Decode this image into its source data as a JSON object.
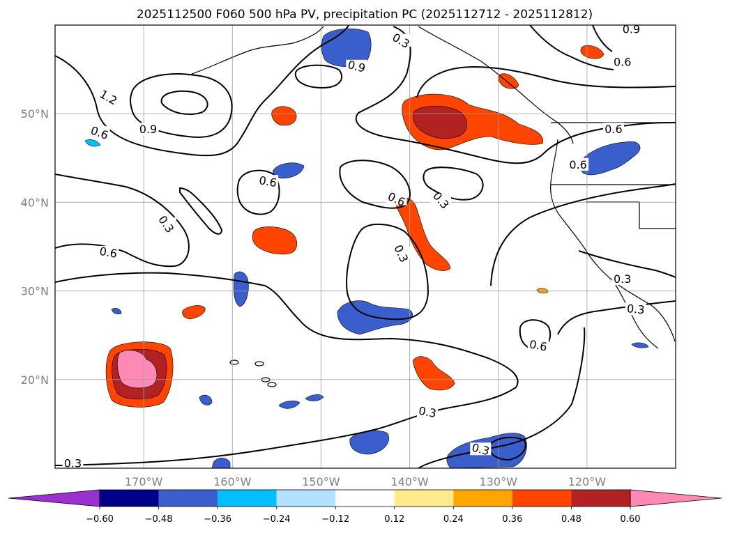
{
  "chart_data": {
    "type": "map",
    "title": "2025112500 F060 500 hPa PV, precipitation PC (2025112712 - 2025112812)",
    "projection": "lat-lon",
    "lon_range": [
      -180,
      -110
    ],
    "lat_range": [
      10,
      60
    ],
    "lon_ticks": [
      {
        "value": -170,
        "label": "170°W"
      },
      {
        "value": -160,
        "label": "160°W"
      },
      {
        "value": -150,
        "label": "150°W"
      },
      {
        "value": -140,
        "label": "140°W"
      },
      {
        "value": -130,
        "label": "130°W"
      },
      {
        "value": -120,
        "label": "120°W"
      }
    ],
    "lat_ticks": [
      {
        "value": 20,
        "label": "20°N"
      },
      {
        "value": 30,
        "label": "30°N"
      },
      {
        "value": 40,
        "label": "40°N"
      },
      {
        "value": 50,
        "label": "50°N"
      }
    ],
    "grid": true,
    "colorbar": {
      "orientation": "horizontal",
      "extend": "both",
      "bounds": [
        -0.6,
        -0.48,
        -0.36,
        -0.24,
        -0.12,
        0.12,
        0.24,
        0.36,
        0.48,
        0.6
      ],
      "tick_labels": [
        "−0.60",
        "−0.48",
        "−0.36",
        "−0.24",
        "−0.12",
        "0.12",
        "0.24",
        "0.36",
        "0.48",
        "0.60"
      ],
      "colors": [
        "#9b30d0",
        "#00008b",
        "#3a5fcd",
        "#00bfff",
        "#b0e2ff",
        "#ffffff",
        "#ffeb8c",
        "#ffa500",
        "#ff4500",
        "#b22222",
        "#ff89b5"
      ]
    },
    "shading_colors": {
      "dark_pos": "#b22222",
      "strong_pos": "#ff4500",
      "mid_pos": "#ffa500",
      "weak_pos": "#ffeb8c",
      "pink": "#ff89b5",
      "strong_neg": "#3a5fcd",
      "mid_neg": "#00bfff",
      "weak_neg": "#b0e2ff"
    },
    "contour_labels": [
      {
        "text": "1.2",
        "lon": -174,
        "lat": 51.8,
        "angle": 30
      },
      {
        "text": "0.9",
        "lon": -169.5,
        "lat": 48.2,
        "angle": 0
      },
      {
        "text": "0.6",
        "lon": -175,
        "lat": 47.8,
        "angle": 20
      },
      {
        "text": "0.9",
        "lon": -146,
        "lat": 55.3,
        "angle": 15
      },
      {
        "text": "0.3",
        "lon": -141,
        "lat": 58.2,
        "angle": 30
      },
      {
        "text": "0.6",
        "lon": -156,
        "lat": 42.3,
        "angle": 10
      },
      {
        "text": "0.3",
        "lon": -167.5,
        "lat": 37.5,
        "angle": 55
      },
      {
        "text": "0.6",
        "lon": -174,
        "lat": 34.3,
        "angle": 10
      },
      {
        "text": "0.6",
        "lon": -141.5,
        "lat": 40.3,
        "angle": 25
      },
      {
        "text": "0.3",
        "lon": -136.5,
        "lat": 40.2,
        "angle": 50
      },
      {
        "text": "0.3",
        "lon": -141,
        "lat": 34.2,
        "angle": 65
      },
      {
        "text": "0.6",
        "lon": -121,
        "lat": 44.2,
        "angle": 0
      },
      {
        "text": "0.6",
        "lon": -117,
        "lat": 48.2,
        "angle": 0
      },
      {
        "text": "0.6",
        "lon": -116,
        "lat": 55.8,
        "angle": 0
      },
      {
        "text": "0.9",
        "lon": -115,
        "lat": 59.5,
        "angle": 0
      },
      {
        "text": "0.3",
        "lon": -116,
        "lat": 31.3,
        "angle": 0
      },
      {
        "text": "0.3",
        "lon": -114.5,
        "lat": 27.9,
        "angle": 5
      },
      {
        "text": "0.6",
        "lon": -125.5,
        "lat": 23.8,
        "angle": 10
      },
      {
        "text": "0.3",
        "lon": -138,
        "lat": 16.3,
        "angle": 10
      },
      {
        "text": "0.3",
        "lon": -132,
        "lat": 12.1,
        "angle": 15
      },
      {
        "text": "0.3",
        "lon": -178,
        "lat": 10.5,
        "angle": 0
      }
    ]
  }
}
